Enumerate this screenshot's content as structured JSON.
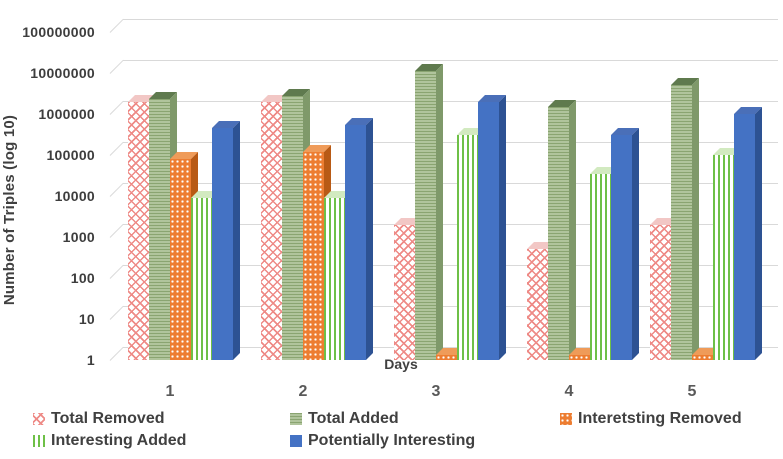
{
  "chart_data": {
    "type": "bar",
    "title": "",
    "xlabel": "Days",
    "ylabel": "Number of Triples (log 10)",
    "scale": "log10",
    "ylim": [
      1,
      100000000
    ],
    "ytick_labels": [
      "1",
      "10",
      "100",
      "1000",
      "10000",
      "100000",
      "1000000",
      "10000000",
      "100000000"
    ],
    "categories": [
      "1",
      "2",
      "3",
      "4",
      "5"
    ],
    "grid": true,
    "legend_position": "bottom",
    "series": [
      {
        "name": "Total Removed",
        "pattern": "red-crosshatch",
        "color": "#ee8a86",
        "values": [
          2000000,
          2000000,
          2000,
          500,
          2000
        ]
      },
      {
        "name": "Total Added",
        "pattern": "green-horizontal-stripes",
        "color": "#a9bd92",
        "values": [
          2300000,
          2700000,
          11000000,
          1500000,
          5000000
        ]
      },
      {
        "name": "Interetsting Removed",
        "pattern": "orange-dotted",
        "color": "#ed7d31",
        "values": [
          80000,
          120000,
          1.3,
          1.3,
          1.3
        ]
      },
      {
        "name": "Interesting Added",
        "pattern": "green-vertical-stripes",
        "color": "#6ec047",
        "values": [
          9000,
          9000,
          300000,
          35000,
          100000
        ]
      },
      {
        "name": "Potentially Interesting",
        "pattern": "blue-solid",
        "color": "#4472c4",
        "values": [
          450000,
          550000,
          2000000,
          300000,
          1000000
        ]
      }
    ]
  }
}
